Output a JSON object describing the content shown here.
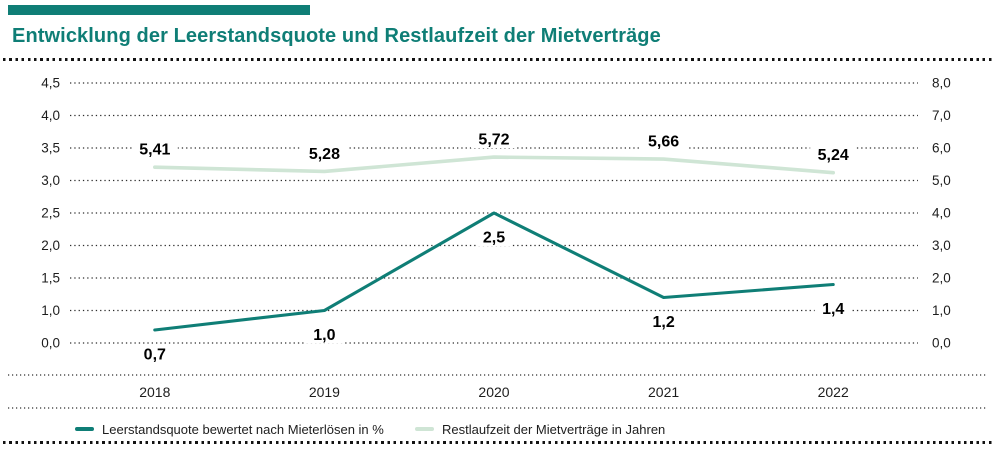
{
  "header": {
    "title": "Entwicklung der Leerstandsquote und Restlaufzeit der Mietverträge"
  },
  "colors": {
    "accent": "#0f7e76",
    "series_vacancy": "#0f7e76",
    "series_term": "#cfe5d5",
    "grid_dot": "#2e2e2e",
    "axis_text": "#1d1d1d",
    "data_label_text": "#000000"
  },
  "chart_data": {
    "type": "line",
    "title": "Entwicklung der Leerstandsquote und Restlaufzeit der Mietverträge",
    "categories": [
      "2018",
      "2019",
      "2020",
      "2021",
      "2022"
    ],
    "series": [
      {
        "name": "Leerstandsquote bewertet nach Mieterlösen in %",
        "axis": "left",
        "values": [
          0.7,
          1.0,
          2.5,
          1.2,
          1.4
        ],
        "value_labels": [
          "0,7",
          "1,0",
          "2,5",
          "1,2",
          "1,4"
        ],
        "color": "#0f7e76",
        "label_position": "below"
      },
      {
        "name": "Restlaufzeit der Mietverträge in Jahren",
        "axis": "right",
        "values": [
          5.41,
          5.28,
          5.72,
          5.66,
          5.24
        ],
        "value_labels": [
          "5,41",
          "5,28",
          "5,72",
          "5,66",
          "5,24"
        ],
        "color": "#cfe5d5",
        "label_position": "above"
      }
    ],
    "left_axis": {
      "ticks": [
        "4,5",
        "4,0",
        "3,5",
        "3,0",
        "2,5",
        "2,0",
        "1,5",
        "1,0",
        "0,0"
      ],
      "plot_range": [
        0.5,
        4.5
      ]
    },
    "right_axis": {
      "ticks": [
        "8,0",
        "7,0",
        "6,0",
        "5,0",
        "4,0",
        "3,0",
        "2,0",
        "1,0",
        "0,0"
      ],
      "plot_range": [
        0,
        8
      ]
    },
    "grid": "dotted horizontal gridlines",
    "legend_position": "bottom-left"
  }
}
